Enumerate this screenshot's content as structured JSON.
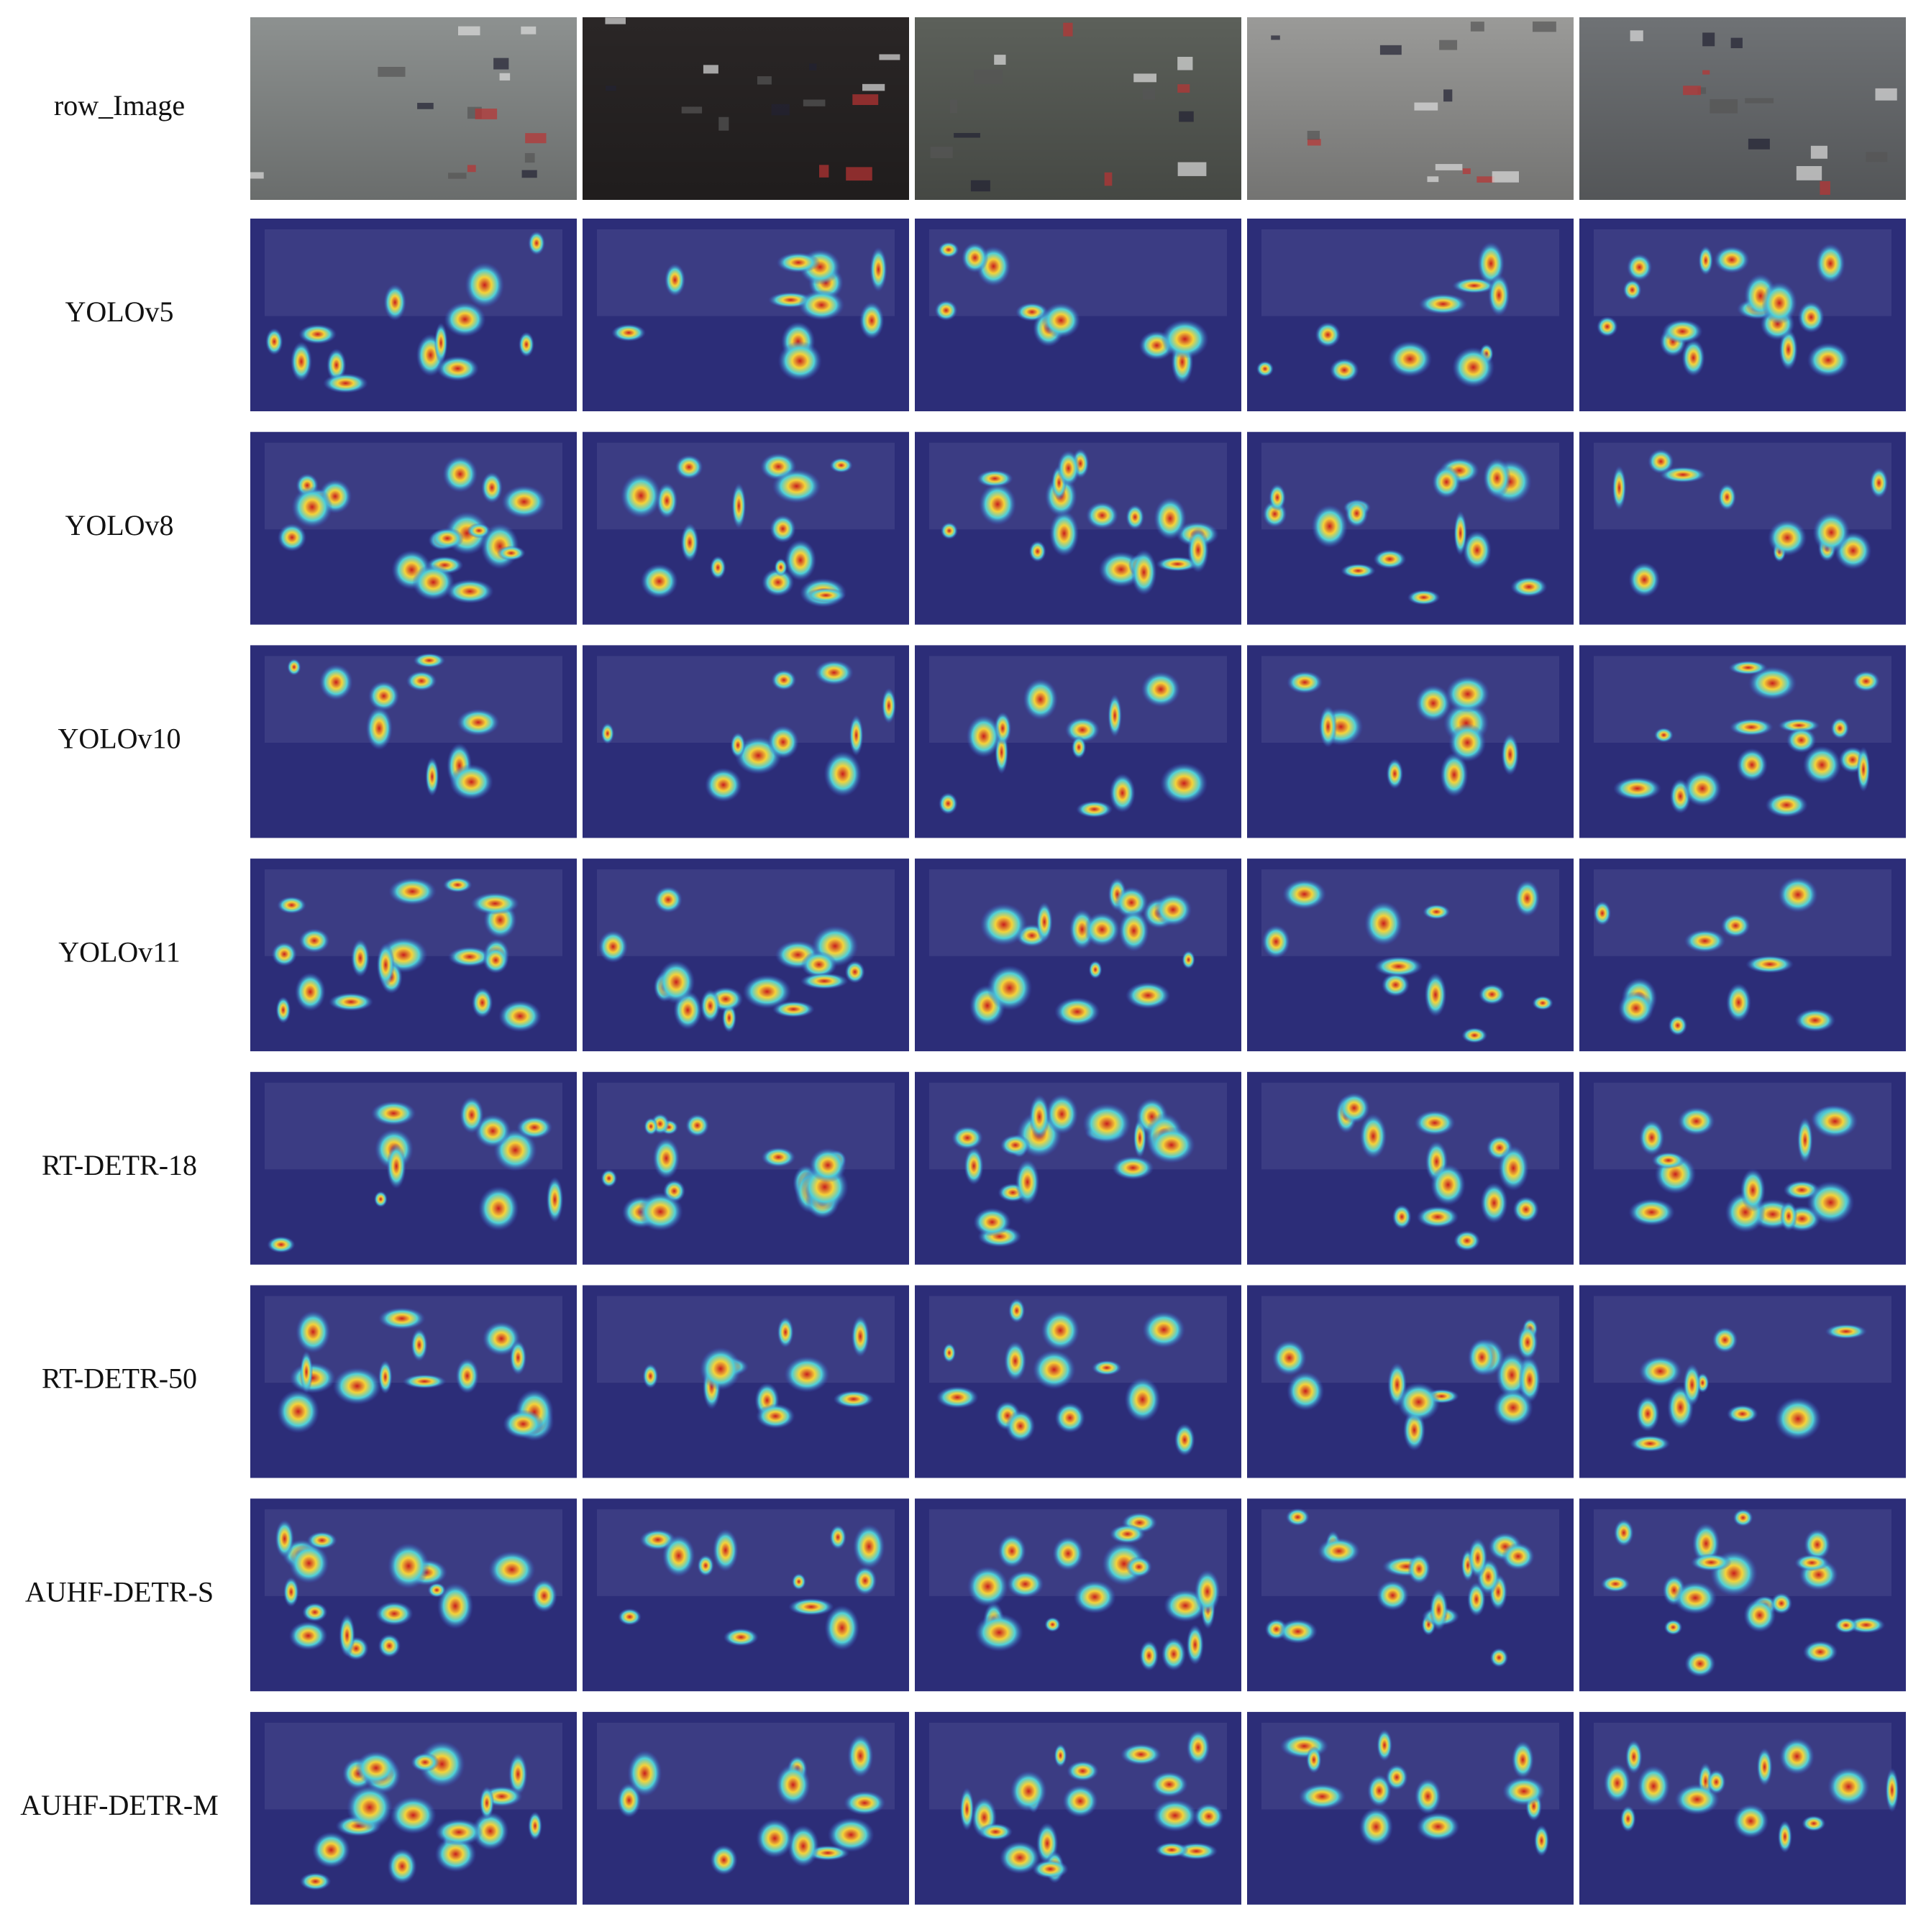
{
  "rows": [
    "row_Image",
    "YOLOv5",
    "YOLOv8",
    "YOLOv10",
    "YOLOv11",
    "RT-DETR-18",
    "RT-DETR-50",
    "AUHF-DETR-S",
    "AUHF-DETR-M"
  ]
}
